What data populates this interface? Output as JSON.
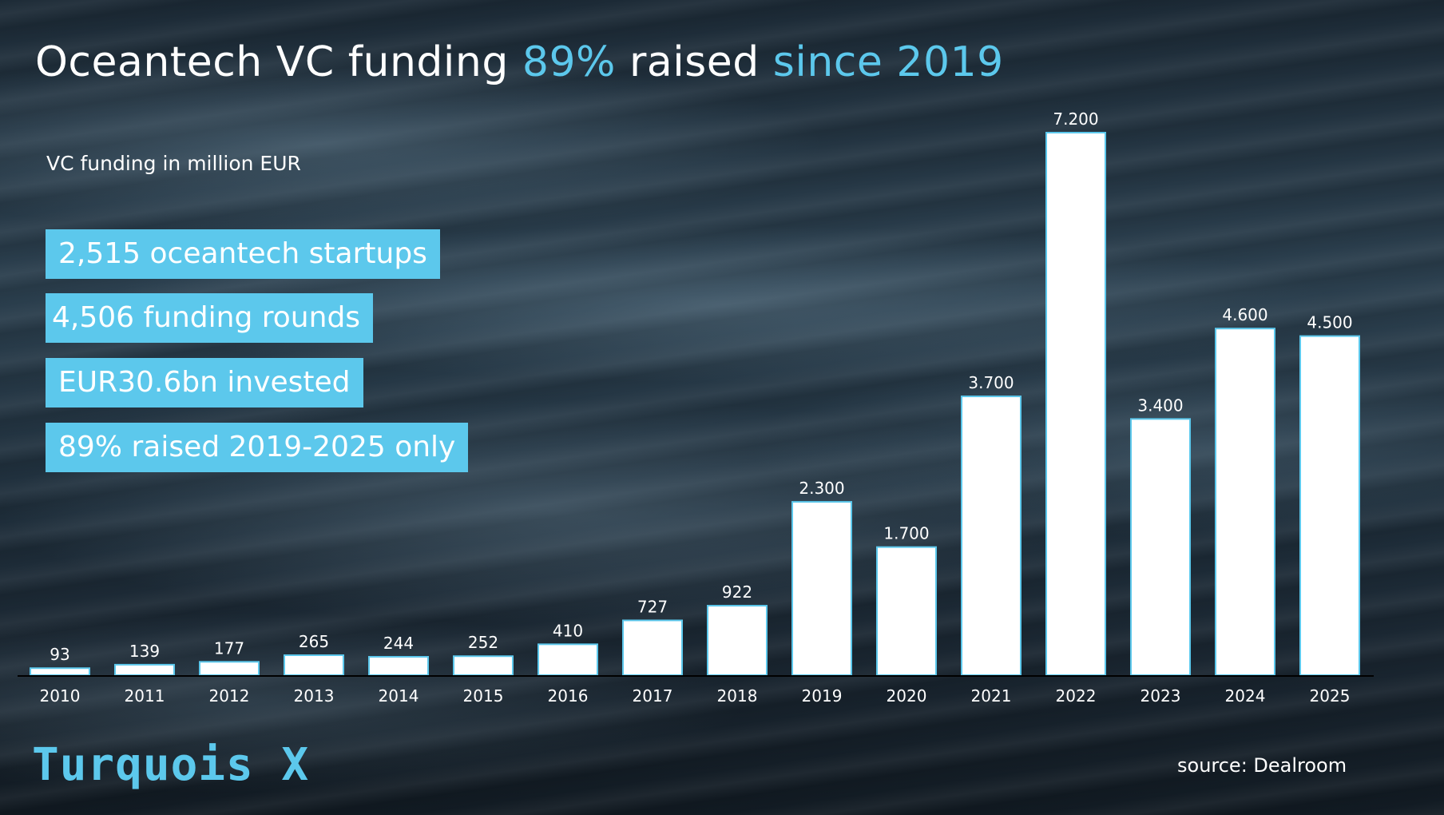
{
  "title": {
    "part1": "Oceantech VC funding ",
    "part2": "89%",
    "part3": " raised ",
    "part4": "since 2019"
  },
  "colors": {
    "accent": "#5cc8ec",
    "bar_fill": "#ffffff"
  },
  "stats": [
    "2,515 oceantech startups",
    "4,506 funding rounds",
    "EUR30.6bn invested",
    "89% raised 2019-2025 only"
  ],
  "brand": "Turquois X",
  "source": "source: Dealroom",
  "chart_data": {
    "type": "bar",
    "ylabel": "VC funding in million EUR",
    "categories": [
      "2010",
      "2011",
      "2012",
      "2013",
      "2014",
      "2015",
      "2016",
      "2017",
      "2018",
      "2019",
      "2020",
      "2021",
      "2022",
      "2023",
      "2024",
      "2025"
    ],
    "values": [
      93,
      139,
      177,
      265,
      244,
      252,
      410,
      727,
      922,
      2300,
      1700,
      3700,
      7200,
      3400,
      4600,
      4500
    ],
    "value_labels": [
      "93",
      "139",
      "177",
      "265",
      "244",
      "252",
      "410",
      "727",
      "922",
      "2.300",
      "1.700",
      "3.700",
      "7.200",
      "3.400",
      "4.600",
      "4.500"
    ],
    "ylim": [
      0,
      7200
    ],
    "grid": false
  }
}
